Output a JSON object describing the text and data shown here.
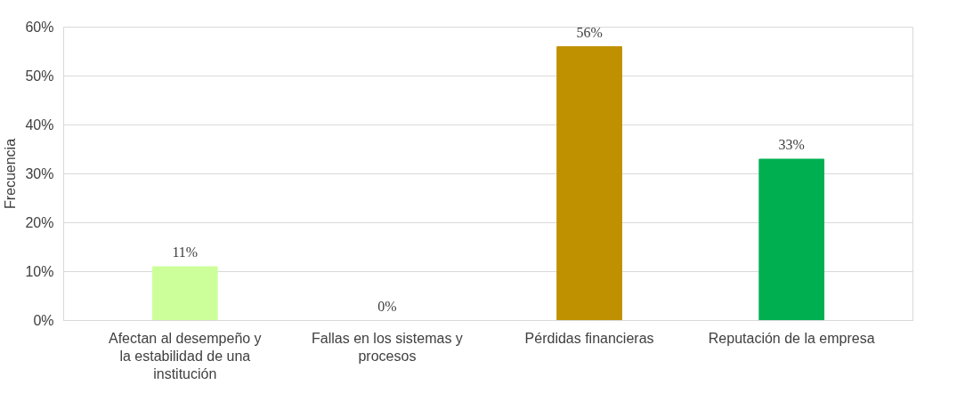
{
  "chart_data": {
    "type": "bar",
    "ylabel": "Frecuencia",
    "categories": [
      "Afectan al desempeño y la estabilidad de una institución",
      "Fallas en los sistemas y procesos",
      "Pérdidas financieras",
      "Reputación de la empresa"
    ],
    "values": [
      11,
      0,
      56,
      33
    ],
    "colors": [
      "#ccff99",
      "#a5a5a5",
      "#bf9000",
      "#00b050"
    ],
    "value_labels": [
      "11%",
      "0%",
      "56%",
      "33%"
    ],
    "ylim": [
      0,
      60
    ],
    "yticks": [
      {
        "value": 0,
        "label": "0%"
      },
      {
        "value": 10,
        "label": "10%"
      },
      {
        "value": 20,
        "label": "20%"
      },
      {
        "value": 30,
        "label": "30%"
      },
      {
        "value": 40,
        "label": "40%"
      },
      {
        "value": 50,
        "label": "50%"
      },
      {
        "value": 60,
        "label": "60%"
      }
    ],
    "grid": "y"
  }
}
